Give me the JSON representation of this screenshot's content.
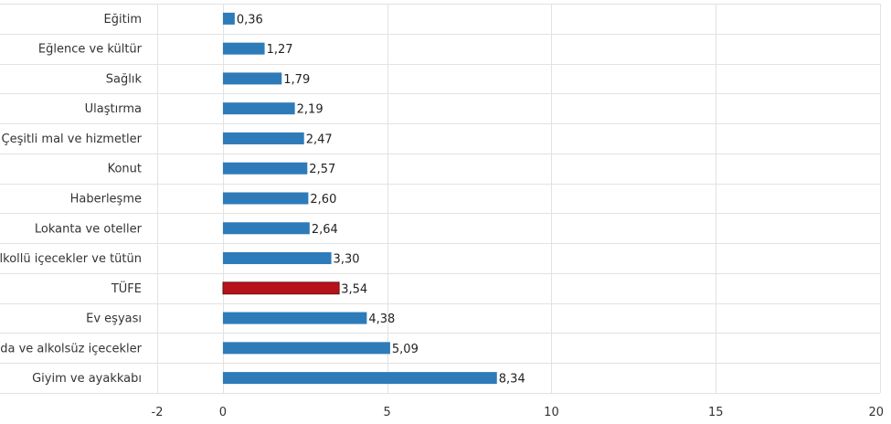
{
  "chart_data": {
    "type": "bar",
    "orientation": "horizontal",
    "categories": [
      "Eğitim",
      "Eğlence ve kültür",
      "Sağlık",
      "Ulaştırma",
      "Çeşitli mal ve hizmetler",
      "Konut",
      "Haberleşme",
      "Lokanta ve oteller",
      "Alkollü içecekler ve tütün",
      "TÜFE",
      "Ev eşyası",
      "Gıda ve alkolsüz içecekler",
      "Giyim ve ayakkabı"
    ],
    "values": [
      0.36,
      1.27,
      1.79,
      2.19,
      2.47,
      2.57,
      2.6,
      2.64,
      3.3,
      3.54,
      4.38,
      5.09,
      8.34
    ],
    "value_labels": [
      "0,36",
      "1,27",
      "1,79",
      "2,19",
      "2,47",
      "2,57",
      "2,60",
      "2,64",
      "3,30",
      "3,54",
      "4,38",
      "5,09",
      "8,34"
    ],
    "xlim": [
      -2,
      20
    ],
    "x_ticks": [
      -2,
      0,
      5,
      10,
      15,
      20
    ],
    "x_tick_labels": [
      "-2",
      "0",
      "5",
      "10",
      "15",
      "20"
    ],
    "title": "",
    "xlabel": "",
    "ylabel": "",
    "grid": true,
    "colors": {
      "default_bar": "#2e7bb9",
      "highlight_bar": "#b5121b",
      "grid": "#e2e2e2",
      "text": "#333333"
    },
    "highlight_category": "TÜFE"
  }
}
